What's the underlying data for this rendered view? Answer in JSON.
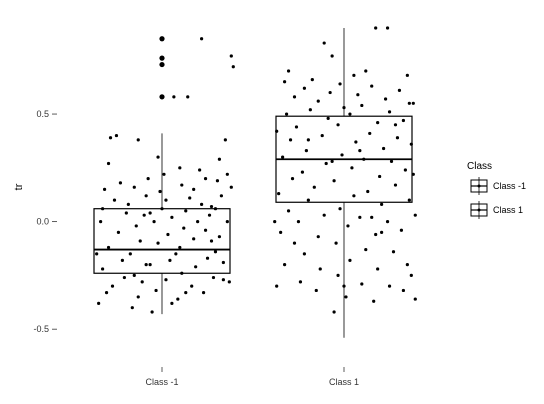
{
  "chart_data": {
    "type": "boxplot",
    "title": "",
    "xlabel": "",
    "ylabel": "tr",
    "ylim": [
      -0.62,
      0.9
    ],
    "y_ticks": [
      {
        "value": 0.5,
        "label": "0.5"
      },
      {
        "value": 0.0,
        "label": "0.0"
      },
      {
        "value": -0.5,
        "label": "-0.5"
      }
    ],
    "grid": false,
    "legend": {
      "title": "Class",
      "position": "right",
      "entries": [
        "Class -1",
        "Class 1"
      ]
    },
    "categories": [
      "Class -1",
      "Class 1"
    ],
    "boxes": [
      {
        "name": "Class -1",
        "whisker_low": -0.43,
        "q1": -0.24,
        "median": -0.13,
        "q3": 0.06,
        "whisker_high": 0.41
      },
      {
        "name": "Class 1",
        "whisker_low": -0.54,
        "q1": 0.09,
        "median": 0.29,
        "q3": 0.49,
        "whisker_high": 0.9
      }
    ],
    "outliers": [
      {
        "category": "Class -1",
        "values": [
          0.58,
          0.73,
          0.76,
          0.85
        ]
      }
    ],
    "jitter": [
      {
        "category": "Class -1",
        "points": [
          [
            -0.32,
            -0.38
          ],
          [
            -0.28,
            -0.33
          ],
          [
            -0.3,
            -0.22
          ],
          [
            -0.25,
            -0.3
          ],
          [
            -0.2,
            -0.18
          ],
          [
            -0.27,
            -0.12
          ],
          [
            -0.22,
            -0.05
          ],
          [
            -0.31,
            0.0
          ],
          [
            -0.18,
            0.04
          ],
          [
            -0.24,
            0.1
          ],
          [
            -0.29,
            0.15
          ],
          [
            -0.21,
            0.18
          ],
          [
            -0.26,
            0.39
          ],
          [
            -0.23,
            0.4
          ],
          [
            -0.15,
            -0.4
          ],
          [
            -0.12,
            -0.35
          ],
          [
            -0.14,
            -0.25
          ],
          [
            -0.1,
            -0.28
          ],
          [
            -0.16,
            -0.15
          ],
          [
            -0.11,
            -0.09
          ],
          [
            -0.13,
            -0.02
          ],
          [
            -0.09,
            0.03
          ],
          [
            -0.17,
            0.08
          ],
          [
            -0.08,
            0.12
          ],
          [
            -0.07,
            0.2
          ],
          [
            -0.12,
            0.38
          ],
          [
            -0.05,
            -0.42
          ],
          [
            -0.03,
            -0.32
          ],
          [
            -0.06,
            -0.2
          ],
          [
            -0.02,
            -0.1
          ],
          [
            -0.04,
            0.0
          ],
          [
            0.0,
            0.06
          ],
          [
            -0.01,
            0.14
          ],
          [
            0.02,
            -0.27
          ],
          [
            0.04,
            -0.18
          ],
          [
            0.03,
            -0.06
          ],
          [
            0.05,
            0.02
          ],
          [
            0.01,
            0.22
          ],
          [
            0.06,
            0.58
          ],
          [
            0.08,
            -0.36
          ],
          [
            0.1,
            -0.24
          ],
          [
            0.09,
            -0.12
          ],
          [
            0.11,
            -0.03
          ],
          [
            0.12,
            0.05
          ],
          [
            0.1,
            0.17
          ],
          [
            0.13,
            0.58
          ],
          [
            0.15,
            -0.3
          ],
          [
            0.17,
            -0.21
          ],
          [
            0.16,
            -0.08
          ],
          [
            0.18,
            0.0
          ],
          [
            0.14,
            0.11
          ],
          [
            0.19,
            0.24
          ],
          [
            0.21,
            -0.33
          ],
          [
            0.23,
            -0.17
          ],
          [
            0.22,
            -0.04
          ],
          [
            0.24,
            0.03
          ],
          [
            0.2,
            0.85
          ],
          [
            0.26,
            -0.26
          ],
          [
            0.27,
            -0.14
          ],
          [
            0.25,
            0.07
          ],
          [
            0.28,
            0.19
          ],
          [
            0.29,
            0.29
          ],
          [
            0.3,
            0.12
          ],
          [
            0.31,
            -0.19
          ],
          [
            0.32,
            0.38
          ],
          [
            0.33,
            0.0
          ],
          [
            0.34,
            -0.28
          ],
          [
            0.35,
            0.16
          ],
          [
            0.35,
            0.77
          ],
          [
            0.36,
            0.72
          ],
          [
            -0.33,
            -0.15
          ],
          [
            -0.3,
            0.06
          ],
          [
            0.07,
            -0.15
          ],
          [
            -0.19,
            -0.26
          ],
          [
            0.02,
            0.1
          ],
          [
            0.25,
            -0.09
          ],
          [
            -0.08,
            -0.2
          ],
          [
            0.16,
            0.15
          ],
          [
            0.29,
            -0.07
          ],
          [
            -0.02,
            0.3
          ],
          [
            0.33,
            0.22
          ],
          [
            0.12,
            -0.33
          ],
          [
            -0.27,
            0.27
          ],
          [
            0.2,
            0.08
          ],
          [
            0.05,
            -0.38
          ],
          [
            -0.14,
            0.16
          ],
          [
            0.31,
            -0.27
          ],
          [
            0.22,
            0.2
          ],
          [
            -0.06,
            0.04
          ],
          [
            0.09,
            0.25
          ],
          [
            0.27,
            0.06
          ]
        ]
      },
      {
        "category": "Class 1",
        "points": [
          [
            -0.34,
            -0.3
          ],
          [
            -0.3,
            -0.2
          ],
          [
            -0.32,
            -0.05
          ],
          [
            -0.28,
            0.05
          ],
          [
            -0.33,
            0.13
          ],
          [
            -0.26,
            0.2
          ],
          [
            -0.31,
            0.3
          ],
          [
            -0.27,
            0.38
          ],
          [
            -0.29,
            0.5
          ],
          [
            -0.25,
            0.58
          ],
          [
            -0.3,
            0.65
          ],
          [
            -0.28,
            0.7
          ],
          [
            -0.22,
            -0.28
          ],
          [
            -0.2,
            -0.15
          ],
          [
            -0.23,
            0.0
          ],
          [
            -0.18,
            0.1
          ],
          [
            -0.21,
            0.23
          ],
          [
            -0.19,
            0.33
          ],
          [
            -0.24,
            0.44
          ],
          [
            -0.17,
            0.52
          ],
          [
            -0.2,
            0.62
          ],
          [
            -0.16,
            0.66
          ],
          [
            -0.14,
            -0.32
          ],
          [
            -0.12,
            -0.22
          ],
          [
            -0.13,
            -0.07
          ],
          [
            -0.1,
            0.03
          ],
          [
            -0.15,
            0.16
          ],
          [
            -0.09,
            0.27
          ],
          [
            -0.11,
            0.4
          ],
          [
            -0.08,
            0.48
          ],
          [
            -0.13,
            0.56
          ],
          [
            -0.07,
            0.6
          ],
          [
            -0.1,
            0.83
          ],
          [
            -0.06,
            0.77
          ],
          [
            -0.05,
            -0.42
          ],
          [
            -0.03,
            -0.25
          ],
          [
            -0.04,
            -0.1
          ],
          [
            -0.02,
            0.06
          ],
          [
            -0.05,
            0.19
          ],
          [
            -0.01,
            0.31
          ],
          [
            -0.03,
            0.45
          ],
          [
            0.0,
            0.53
          ],
          [
            -0.02,
            0.64
          ],
          [
            0.01,
            -0.35
          ],
          [
            0.03,
            -0.18
          ],
          [
            0.02,
            -0.02
          ],
          [
            0.05,
            0.12
          ],
          [
            0.04,
            0.25
          ],
          [
            0.06,
            0.37
          ],
          [
            0.03,
            0.5
          ],
          [
            0.07,
            0.59
          ],
          [
            0.05,
            0.68
          ],
          [
            0.09,
            -0.29
          ],
          [
            0.11,
            -0.13
          ],
          [
            0.08,
            0.02
          ],
          [
            0.12,
            0.14
          ],
          [
            0.1,
            0.29
          ],
          [
            0.13,
            0.41
          ],
          [
            0.09,
            0.54
          ],
          [
            0.14,
            0.63
          ],
          [
            0.11,
            0.7
          ],
          [
            0.15,
            -0.37
          ],
          [
            0.17,
            -0.22
          ],
          [
            0.16,
            -0.06
          ],
          [
            0.19,
            0.08
          ],
          [
            0.18,
            0.21
          ],
          [
            0.2,
            0.34
          ],
          [
            0.17,
            0.46
          ],
          [
            0.21,
            0.57
          ],
          [
            0.16,
            0.9
          ],
          [
            0.23,
            -0.3
          ],
          [
            0.25,
            -0.14
          ],
          [
            0.22,
            0.0
          ],
          [
            0.26,
            0.17
          ],
          [
            0.24,
            0.28
          ],
          [
            0.27,
            0.39
          ],
          [
            0.23,
            0.51
          ],
          [
            0.28,
            0.61
          ],
          [
            0.22,
            0.9
          ],
          [
            0.3,
            -0.32
          ],
          [
            0.32,
            -0.2
          ],
          [
            0.29,
            -0.04
          ],
          [
            0.33,
            0.1
          ],
          [
            0.31,
            0.24
          ],
          [
            0.34,
            0.36
          ],
          [
            0.3,
            0.47
          ],
          [
            0.35,
            0.55
          ],
          [
            0.32,
            0.68
          ],
          [
            0.36,
            -0.36
          ],
          [
            0.36,
            0.03
          ],
          [
            0.35,
            0.22
          ],
          [
            0.34,
            -0.25
          ],
          [
            -0.35,
            0.0
          ],
          [
            -0.34,
            0.42
          ],
          [
            0.0,
            -0.3
          ],
          [
            0.14,
            0.02
          ],
          [
            -0.06,
            0.28
          ],
          [
            0.26,
            0.45
          ],
          [
            0.19,
            -0.05
          ],
          [
            -0.18,
            0.38
          ],
          [
            0.08,
            0.33
          ],
          [
            -0.25,
            -0.1
          ],
          [
            0.33,
            0.55
          ]
        ]
      }
    ]
  }
}
